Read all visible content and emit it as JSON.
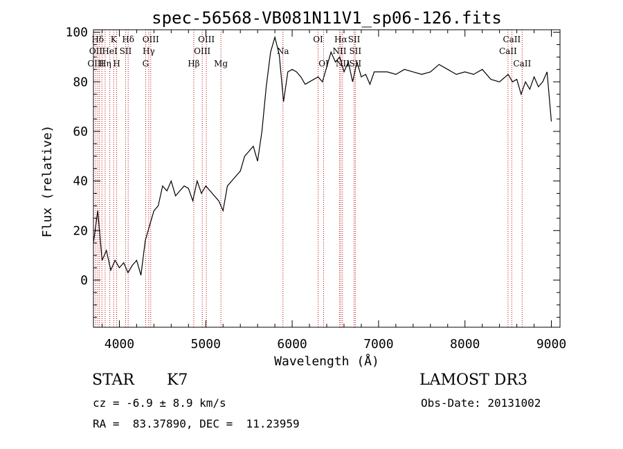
{
  "chart_data": {
    "type": "line",
    "title": "spec-56568-VB081N11V1_sp06-126.fits",
    "xlabel": "Wavelength (Å)",
    "ylabel": "Flux (relative)",
    "xlim": [
      3700,
      9100
    ],
    "ylim": [
      -19,
      101
    ],
    "x_ticks": [
      4000,
      5000,
      6000,
      7000,
      8000,
      9000
    ],
    "y_ticks": [
      0,
      20,
      40,
      60,
      80,
      100
    ],
    "series": [
      {
        "name": "flux",
        "x": [
          3700,
          3750,
          3800,
          3850,
          3900,
          3950,
          4000,
          4050,
          4100,
          4150,
          4200,
          4250,
          4300,
          4350,
          4400,
          4450,
          4500,
          4550,
          4600,
          4650,
          4700,
          4750,
          4800,
          4850,
          4900,
          4950,
          5000,
          5050,
          5100,
          5150,
          5200,
          5250,
          5300,
          5350,
          5400,
          5450,
          5500,
          5550,
          5600,
          5650,
          5700,
          5750,
          5800,
          5850,
          5900,
          5950,
          6000,
          6050,
          6100,
          6150,
          6200,
          6250,
          6300,
          6350,
          6400,
          6450,
          6500,
          6550,
          6600,
          6650,
          6700,
          6750,
          6800,
          6850,
          6900,
          6950,
          7000,
          7100,
          7200,
          7300,
          7400,
          7500,
          7600,
          7700,
          7800,
          7900,
          8000,
          8100,
          8200,
          8300,
          8400,
          8500,
          8550,
          8600,
          8650,
          8700,
          8750,
          8800,
          8850,
          8900,
          8950,
          9000
        ],
        "y": [
          15,
          28,
          8,
          12,
          4,
          8,
          5,
          7,
          3,
          6,
          8,
          2,
          16,
          22,
          28,
          30,
          38,
          36,
          40,
          34,
          36,
          38,
          37,
          32,
          40,
          35,
          38,
          36,
          34,
          32,
          28,
          38,
          40,
          42,
          44,
          50,
          52,
          54,
          48,
          60,
          78,
          92,
          98,
          91,
          72,
          84,
          85,
          84,
          82,
          79,
          80,
          81,
          82,
          80,
          86,
          92,
          88,
          90,
          84,
          88,
          80,
          88,
          82,
          83,
          79,
          84,
          84,
          84,
          83,
          85,
          84,
          83,
          84,
          87,
          85,
          83,
          84,
          83,
          85,
          81,
          80,
          83,
          80,
          81,
          75,
          80,
          77,
          82,
          78,
          80,
          84,
          64
        ]
      }
    ],
    "line_markers": [
      {
        "label": "Hδ",
        "wavelength": 3750,
        "row": 0
      },
      {
        "label": "K",
        "wavelength": 3934,
        "row": 0
      },
      {
        "label": "Hδ",
        "wavelength": 4102,
        "row": 0
      },
      {
        "label": "OIII",
        "wavelength": 4363,
        "row": 0
      },
      {
        "label": "OIII",
        "wavelength": 5007,
        "row": 0
      },
      {
        "label": "OI",
        "wavelength": 6300,
        "row": 0
      },
      {
        "label": "Hα",
        "wavelength": 6563,
        "row": 0
      },
      {
        "label": "SII",
        "wavelength": 6717,
        "row": 0
      },
      {
        "label": "CaII",
        "wavelength": 8542,
        "row": 0
      },
      {
        "label": "OII",
        "wavelength": 3727,
        "row": 1
      },
      {
        "label": "HeI",
        "wavelength": 3889,
        "row": 1
      },
      {
        "label": "SII",
        "wavelength": 4072,
        "row": 1
      },
      {
        "label": "Hγ",
        "wavelength": 4340,
        "row": 1
      },
      {
        "label": "OIII",
        "wavelength": 4959,
        "row": 1
      },
      {
        "label": "Na",
        "wavelength": 5893,
        "row": 1
      },
      {
        "label": "NII",
        "wavelength": 6548,
        "row": 1
      },
      {
        "label": "SII",
        "wavelength": 6731,
        "row": 1
      },
      {
        "label": "CaII",
        "wavelength": 8498,
        "row": 1
      },
      {
        "label": "OIII",
        "wavelength": 3727,
        "row": 2
      },
      {
        "label": "Hη",
        "wavelength": 3835,
        "row": 2
      },
      {
        "label": "H",
        "wavelength": 3969,
        "row": 2
      },
      {
        "label": "G",
        "wavelength": 4304,
        "row": 2
      },
      {
        "label": "Hβ",
        "wavelength": 4861,
        "row": 2
      },
      {
        "label": "Mg",
        "wavelength": 5175,
        "row": 2
      },
      {
        "label": "OI",
        "wavelength": 6364,
        "row": 2
      },
      {
        "label": "NII",
        "wavelength": 6583,
        "row": 2
      },
      {
        "label": "SII",
        "wavelength": 6731,
        "row": 2
      },
      {
        "label": "CaII",
        "wavelength": 8662,
        "row": 2
      }
    ],
    "extra_marker_lines": [
      3770,
      3798,
      3889,
      4072,
      4340,
      4861,
      4959,
      5893,
      6300,
      6364,
      6548,
      6563,
      6583,
      6717,
      6731,
      8498,
      8542,
      8662
    ]
  },
  "info": {
    "object_class": "STAR",
    "subclass": "K7",
    "survey": "LAMOST DR3",
    "redshift": "cz = -6.9 ± 8.9 km/s",
    "obs_date": "Obs-Date: 20131002",
    "coords": "RA =  83.37890, DEC =  11.23959"
  },
  "colors": {
    "line": "#000000",
    "marker": "#c00000"
  }
}
